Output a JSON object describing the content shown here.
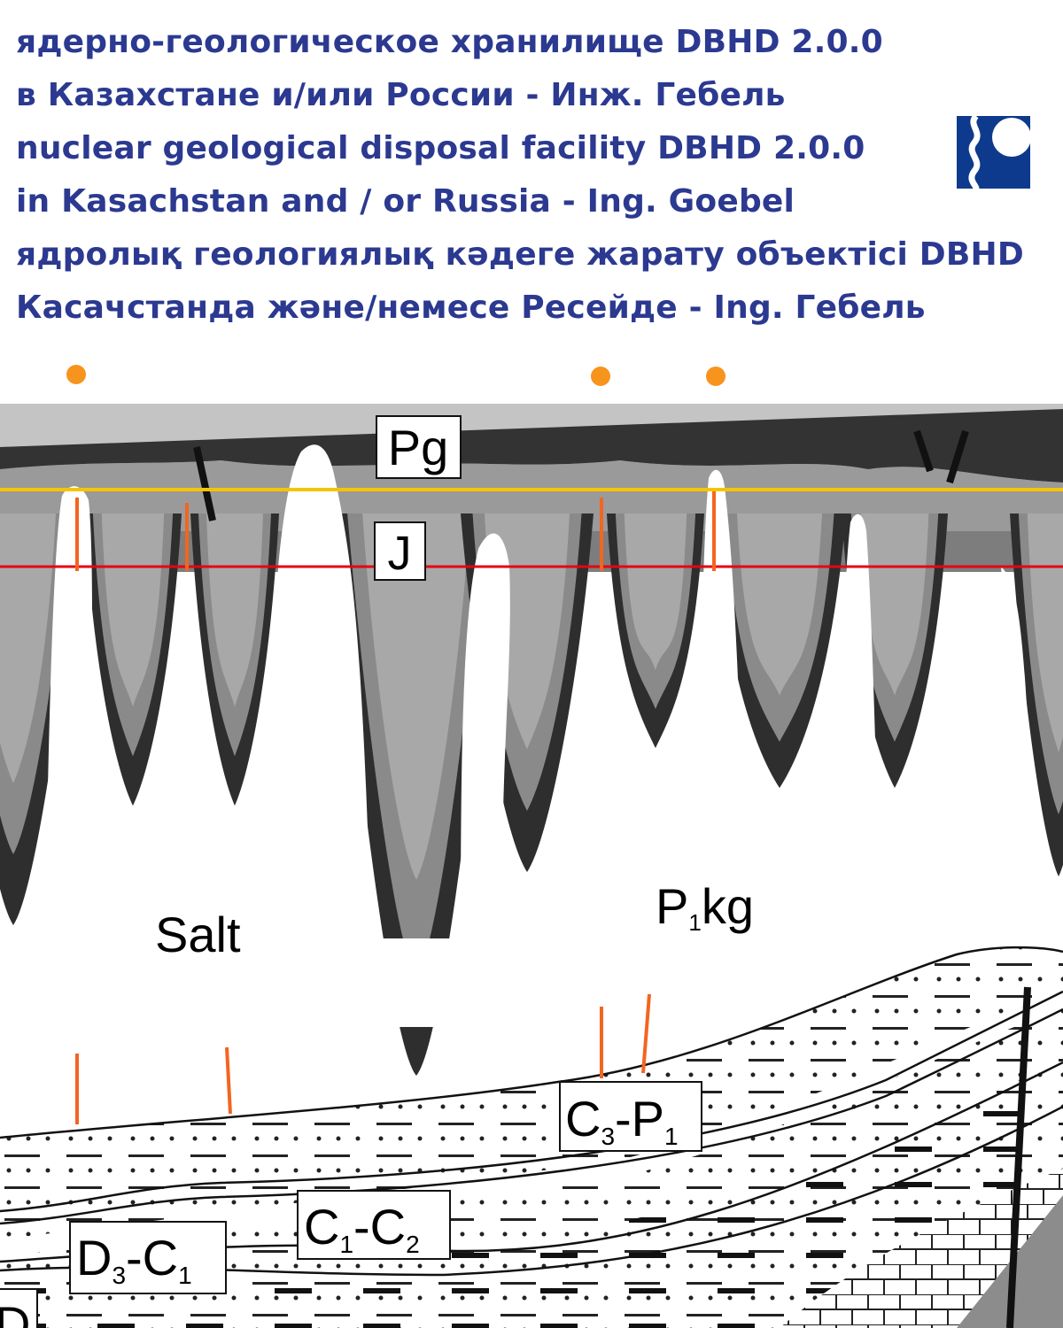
{
  "title_lines": [
    "ядерно-геологическое хранилище DBHD 2.0.0",
    "в Казахстане и/или России - Инж. Гебель",
    "nuclear geological disposal facility DBHD 2.0.0",
    "in Kasachstan and / or  Russia - Ing. Goebel",
    "ядролық геологиялық кәдеге жарату объектісі DBHD",
    "Касачстанда және/немесе Ресейде - Ing. Гебель"
  ],
  "logo": {
    "icon": "wave-and-circle-logo",
    "color": "#0d3a8c"
  },
  "diagram": {
    "labels": {
      "pg": "Pg",
      "j": "J",
      "salt": "Salt",
      "p1kg_main": "P",
      "p1kg_sub": "1",
      "p1kg_rest": "kg",
      "c3p1": {
        "a": "C",
        "a_sub": "3",
        "dash": "-P",
        "b_sub": "1"
      },
      "c1c2": {
        "a": "C",
        "a_sub": "1",
        "dash": "-C",
        "b_sub": "2"
      },
      "d3c1": {
        "a": "D",
        "a_sub": "3",
        "dash": "-C",
        "b_sub": "1"
      },
      "d": "D"
    },
    "colors": {
      "marker_dots": "#f7941d",
      "yellow_line": "#f5c400",
      "red_line": "#e30613",
      "borehole_lines": "#f26522"
    }
  }
}
